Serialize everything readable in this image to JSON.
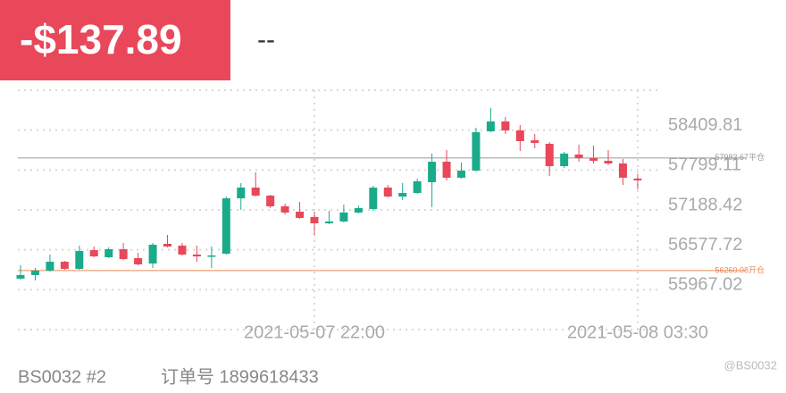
{
  "header": {
    "amount": "-$137.89",
    "status": "--"
  },
  "footer": {
    "order_tag": "BS0032 #2",
    "order_number": "订单号 1899618433",
    "watermark": "@BS0032"
  },
  "chart_data": {
    "type": "candlestick",
    "categories": [
      null,
      null,
      null,
      null,
      null,
      null,
      null,
      null,
      null,
      null,
      null,
      null,
      null,
      null,
      null,
      null,
      null,
      null,
      null,
      null,
      "2021-05-07 22:00",
      null,
      null,
      null,
      null,
      null,
      null,
      null,
      null,
      null,
      null,
      null,
      null,
      null,
      null,
      null,
      null,
      null,
      null,
      null,
      null,
      null,
      "2021-05-08 03:30"
    ],
    "open": [
      56136,
      56191,
      56259,
      56395,
      56286,
      56573,
      56464,
      56587,
      56450,
      56368,
      56669,
      56642,
      56505,
      56477,
      56518,
      57366,
      57530,
      57407,
      57243,
      57161,
      57079,
      56983,
      57011,
      57148,
      57202,
      57530,
      57393,
      57448,
      57612,
      57926,
      57681,
      57790,
      58391,
      58542,
      58405,
      58254,
      58200,
      57858,
      58036,
      57981,
      57940,
      57899,
      57667
    ],
    "high": [
      56340,
      56300,
      56505,
      56409,
      56642,
      56628,
      56614,
      56683,
      56532,
      56683,
      56806,
      56683,
      56642,
      56628,
      57393,
      57599,
      57763,
      57421,
      57284,
      57311,
      57161,
      57175,
      57270,
      57257,
      57558,
      57571,
      57599,
      57667,
      58050,
      58105,
      57913,
      58446,
      58747,
      58610,
      58487,
      58350,
      58227,
      58077,
      58187,
      58173,
      58105,
      57968,
      57736
    ],
    "low": [
      56122,
      56108,
      56245,
      56273,
      56273,
      56464,
      56450,
      56422,
      56340,
      56300,
      56614,
      56491,
      56395,
      56300,
      56505,
      57189,
      57393,
      57216,
      57120,
      57052,
      56806,
      56969,
      56997,
      57134,
      57175,
      57379,
      57338,
      57434,
      57230,
      57640,
      57667,
      57777,
      58378,
      58350,
      58091,
      58132,
      57708,
      57831,
      57926,
      57899,
      57872,
      57571,
      57503
    ],
    "close": [
      56191,
      56259,
      56395,
      56286,
      56559,
      56477,
      56587,
      56436,
      56354,
      56655,
      56628,
      56505,
      56477,
      56491,
      57366,
      57530,
      57407,
      57243,
      57148,
      57065,
      56983,
      57011,
      57148,
      57216,
      57530,
      57393,
      57448,
      57626,
      57926,
      57681,
      57790,
      58378,
      58542,
      58405,
      58241,
      58214,
      57858,
      58050,
      57981,
      57940,
      57899,
      57681,
      57640
    ],
    "up_color": "#1aab8a",
    "down_color": "#e8485a",
    "ylim": [
      55356.32,
      59020.51
    ],
    "yticks": [
      55967.02,
      56577.72,
      57188.42,
      57799.11,
      58409.81
    ],
    "grid": true,
    "reference_lines": [
      {
        "value": 57983.67,
        "label": "57983.67平仓",
        "color": "#9a9a9a"
      },
      {
        "value": 56260.08,
        "label": "56260.08开仓",
        "color": "#ee8a55"
      }
    ]
  }
}
